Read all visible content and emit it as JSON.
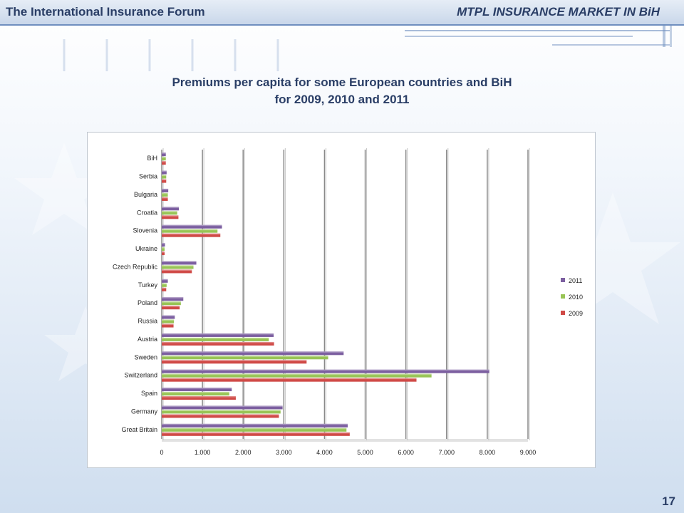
{
  "header": {
    "left": "The International Insurance Forum",
    "right": "MTPL INSURANCE MARKET IN BiH"
  },
  "page_number": "17",
  "colors": {
    "2011": "#7c5fa0",
    "2010": "#98c455",
    "2009": "#d04a47",
    "header_text": "#2a3e66"
  },
  "chart_data": {
    "type": "bar",
    "orientation": "horizontal",
    "title": "Premiums per capita for some European countries and BiH for 2009, 2010 and 2011",
    "title_lines": [
      "Premiums per capita for some European countries and BiH",
      "for 2009, 2010 and 2011"
    ],
    "categories": [
      "BiH",
      "Serbia",
      "Bulgaria",
      "Croatia",
      "Slovenia",
      "Ukraine",
      "Czech Republic",
      "Turkey",
      "Poland",
      "Russia",
      "Austria",
      "Sweden",
      "Switzerland",
      "Spain",
      "Germany",
      "Great Britain"
    ],
    "series": [
      {
        "name": "2011",
        "color": "#7c5fa0",
        "values": [
          100,
          120,
          160,
          420,
          1480,
          80,
          850,
          150,
          530,
          320,
          2750,
          4470,
          8050,
          1720,
          2970,
          4570
        ]
      },
      {
        "name": "2010",
        "color": "#98c455",
        "values": [
          100,
          110,
          150,
          380,
          1370,
          70,
          780,
          120,
          470,
          300,
          2630,
          4090,
          6630,
          1660,
          2920,
          4540
        ]
      },
      {
        "name": "2009",
        "color": "#d04a47",
        "values": [
          100,
          110,
          150,
          410,
          1440,
          70,
          740,
          110,
          440,
          290,
          2760,
          3560,
          6260,
          1820,
          2880,
          4620
        ]
      }
    ],
    "xlim": [
      0,
      9000
    ],
    "xticks": [
      0,
      1000,
      2000,
      3000,
      4000,
      5000,
      6000,
      7000,
      8000,
      9000
    ],
    "xtick_labels": [
      "0",
      "1.000",
      "2.000",
      "3.000",
      "4.000",
      "5.000",
      "6.000",
      "7.000",
      "8.000",
      "9.000"
    ],
    "grid": "vertical",
    "legend": "right",
    "legend_entries": [
      "2011",
      "2010",
      "2009"
    ]
  }
}
